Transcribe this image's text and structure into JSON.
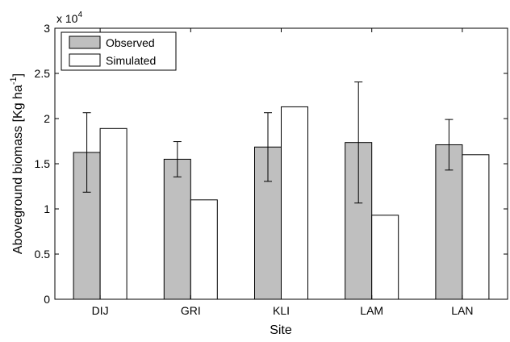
{
  "chart_data": {
    "type": "bar",
    "categories": [
      "DIJ",
      "GRI",
      "KLI",
      "LAM",
      "LAN"
    ],
    "series": [
      {
        "name": "Observed",
        "values": [
          16250,
          15500,
          16850,
          17350,
          17100
        ],
        "error": [
          4400,
          1950,
          3800,
          6700,
          2800
        ],
        "color": "#bfbfbf"
      },
      {
        "name": "Simulated",
        "values": [
          18900,
          11000,
          21300,
          9300,
          16000
        ],
        "color": "#ffffff"
      }
    ],
    "xlabel": "Site",
    "ylabel_main": "Aboveground biomass [Kg ha",
    "ylabel_sup": "-1",
    "ylabel_end": "]",
    "ylim": [
      0,
      30000
    ],
    "yticks": [
      0,
      5000,
      10000,
      15000,
      20000,
      25000,
      30000
    ],
    "ytick_labels": [
      "0",
      "0.5",
      "1",
      "1.5",
      "2",
      "2.5",
      "3"
    ],
    "multiplier_base": "x 10",
    "multiplier_exp": "4",
    "legend_position": "top-left",
    "grid": false
  }
}
